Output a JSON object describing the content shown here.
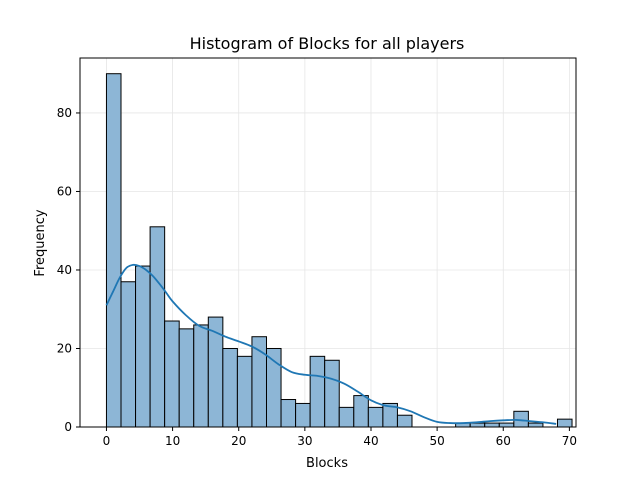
{
  "chart_data": {
    "type": "bar",
    "title": "Histogram of Blocks for all players",
    "xlabel": "Blocks",
    "ylabel": "Frequency",
    "xlim": [
      -4,
      71
    ],
    "ylim": [
      0,
      94
    ],
    "xticks": [
      0,
      10,
      20,
      30,
      40,
      50,
      60,
      70
    ],
    "yticks": [
      0,
      20,
      40,
      60,
      80
    ],
    "grid": true,
    "bin_width": 2.2,
    "bin_edges_start": 0,
    "values": [
      90,
      37,
      41,
      51,
      27,
      25,
      26,
      28,
      20,
      18,
      23,
      20,
      7,
      6,
      18,
      17,
      5,
      8,
      5,
      6,
      3,
      0,
      0,
      0,
      1,
      1,
      1,
      1,
      4,
      1,
      0,
      2
    ],
    "kde": {
      "x": [
        0,
        1,
        2,
        3,
        4,
        5,
        6,
        7,
        8,
        9,
        10,
        12,
        14,
        16,
        18,
        20,
        22,
        24,
        26,
        28,
        30,
        32,
        34,
        36,
        38,
        40,
        42,
        44,
        46,
        48,
        50,
        52,
        54,
        56,
        58,
        60,
        62,
        64,
        66,
        68
      ],
      "y": [
        31,
        34.5,
        38,
        40.5,
        41.3,
        41,
        40,
        38.5,
        36.5,
        34.3,
        32,
        28.5,
        25.8,
        24.5,
        23,
        21.8,
        20.5,
        18.5,
        16,
        14,
        13.3,
        13,
        12.3,
        11,
        9,
        6.8,
        5.5,
        5,
        4,
        2.5,
        1.3,
        1,
        1,
        1.2,
        1.5,
        1.7,
        1.8,
        1.5,
        1.2,
        0.8
      ]
    },
    "colors": {
      "bar_fill": "#8db6d6",
      "bar_edge": "#000000",
      "kde_line": "#1f77b4",
      "grid": "#e6e6e6"
    }
  }
}
